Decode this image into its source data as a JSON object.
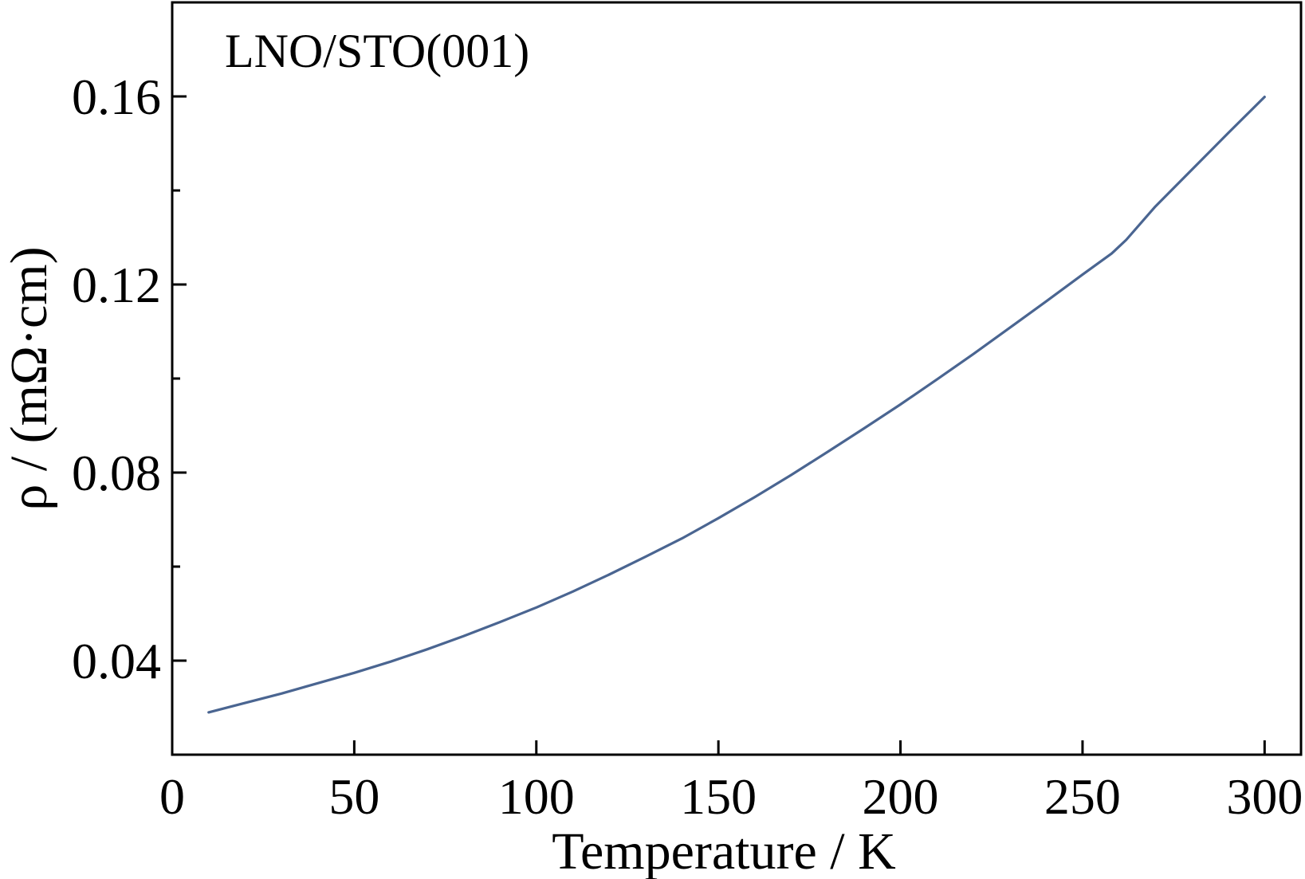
{
  "chart_data": {
    "type": "line",
    "annotation": "LNO/STO(001)",
    "xlabel": "Temperature / K",
    "ylabel": "ρ / (mΩ·cm)",
    "xlim": [
      0,
      310
    ],
    "ylim": [
      0.02,
      0.18
    ],
    "x_ticks": [
      0,
      50,
      100,
      150,
      200,
      250,
      300
    ],
    "x_tick_labels": [
      "0",
      "50",
      "100",
      "150",
      "200",
      "250",
      "300"
    ],
    "y_ticks": [
      0.04,
      0.08,
      0.12,
      0.16
    ],
    "y_tick_labels": [
      "0.04",
      "0.08",
      "0.12",
      "0.16"
    ],
    "y_minor_ticks": [
      0.06,
      0.1,
      0.14
    ],
    "grid": false,
    "series": [
      {
        "color": "#4a6591",
        "x": [
          10,
          20,
          30,
          40,
          50,
          60,
          70,
          80,
          90,
          100,
          110,
          120,
          130,
          140,
          150,
          160,
          170,
          180,
          190,
          200,
          210,
          220,
          230,
          240,
          250,
          258,
          262,
          270,
          280,
          290,
          300
        ],
        "y": [
          0.029,
          0.031,
          0.033,
          0.0352,
          0.0374,
          0.0398,
          0.0424,
          0.0452,
          0.0482,
          0.0513,
          0.0547,
          0.0583,
          0.0621,
          0.066,
          0.0703,
          0.0748,
          0.0795,
          0.0844,
          0.0894,
          0.0945,
          0.0998,
          0.1052,
          0.1108,
          0.1164,
          0.1221,
          0.1266,
          0.1295,
          0.1366,
          0.1444,
          0.1522,
          0.1599
        ]
      }
    ]
  }
}
